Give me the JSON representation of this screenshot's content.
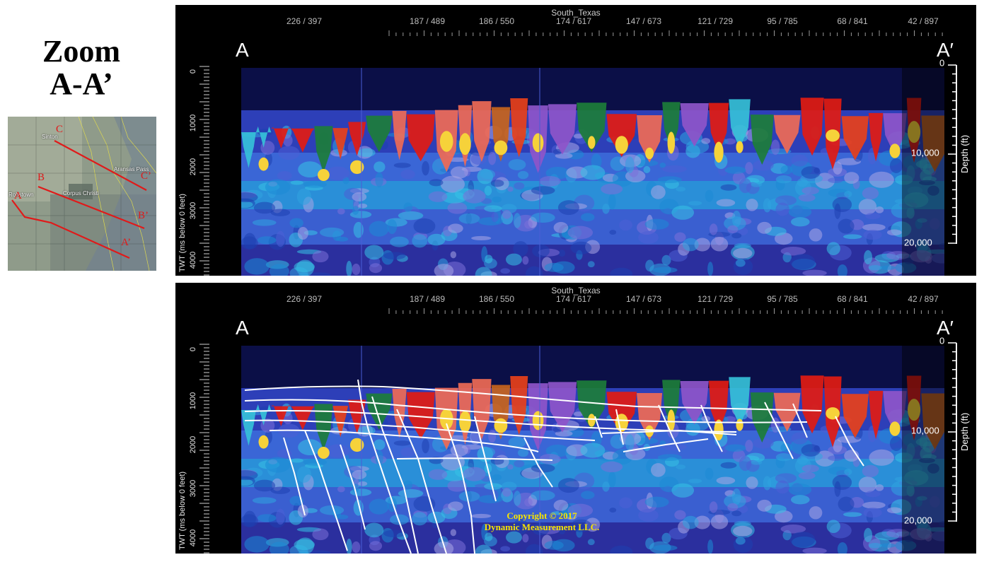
{
  "title": {
    "line1": "Zoom",
    "line2": "A-A’"
  },
  "map": {
    "places": [
      "Sinton",
      "Aransas Pass",
      "Corpus Christi",
      "Robstown"
    ],
    "line_letters": [
      "C",
      "C’",
      "B",
      "B’",
      "A",
      "A’"
    ]
  },
  "section": {
    "survey_name": "South_Texas",
    "trace_labels": [
      "226 / 397",
      "187 / 489",
      "186 / 550",
      "174 / 617",
      "147 / 673",
      "121 / 729",
      "95 / 785",
      "68 / 841",
      "42 / 897"
    ],
    "left_label": "A",
    "right_label": "A′",
    "twt_ticks": [
      "0",
      "1000",
      "2000",
      "3000",
      "4000"
    ],
    "twt_axis_title": "TWT (ms below 0 feet)",
    "depth_ticks": [
      "0",
      "10,000",
      "20,000"
    ],
    "depth_axis_title": "Depth (ft)"
  },
  "copyright": {
    "line1": "Copyright  © 2017",
    "line2": "Dynamic Measurement LLC."
  },
  "colors": {
    "red": "#e01a1a",
    "yellow": "#f7e400",
    "background_deep": "#0b0f47"
  }
}
